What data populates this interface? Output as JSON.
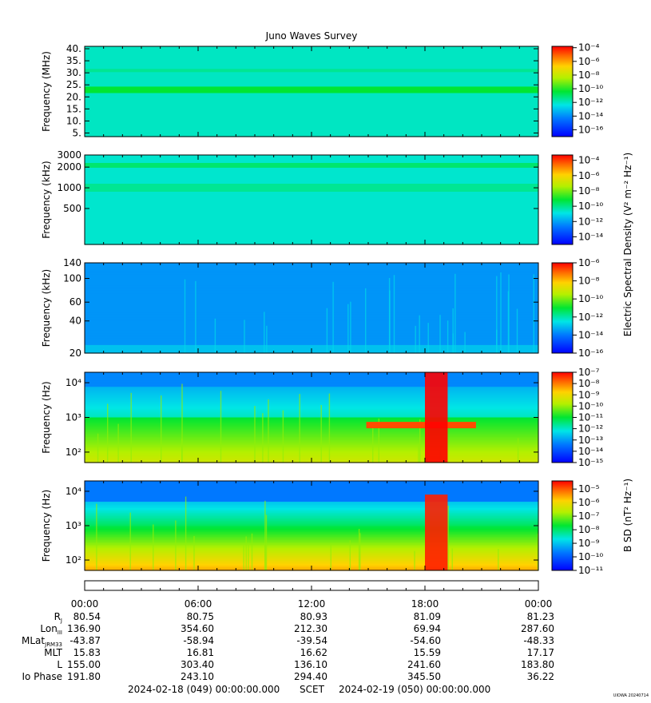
{
  "chart_data": {
    "type": "heatmap",
    "title": "Juno Waves Survey",
    "shared_axis_labels": {
      "electric": "Electric Spectral Density (V² m⁻² Hz⁻¹)",
      "magnetic": "B SD (nT² Hz⁻¹)"
    },
    "panels": [
      {
        "ylabel": "Frequency (MHz)",
        "scale": "linear",
        "ylim": [
          3.5,
          41
        ],
        "yticks": [
          "40.",
          "35.",
          "30.",
          "25.",
          "20.",
          "15.",
          "10.",
          "5."
        ],
        "ytick_values": [
          40,
          35,
          30,
          25,
          20,
          15,
          10,
          5
        ],
        "colorbar_labels": [
          "10⁻⁴",
          "10⁻⁶",
          "10⁻⁸",
          "10⁻¹⁰",
          "10⁻¹²",
          "10⁻¹⁴",
          "10⁻¹⁶"
        ],
        "colorbar_exponents": [
          -4,
          -6,
          -8,
          -10,
          -12,
          -14,
          -16
        ],
        "colorbar_range": [
          -17,
          -3.8
        ]
      },
      {
        "ylabel": "Frequency (kHz)",
        "scale": "log",
        "ylim": [
          150,
          3000
        ],
        "yticks": [
          "3000",
          "2000",
          "1000",
          "500"
        ],
        "ytick_values": [
          3000,
          2000,
          1000,
          500
        ],
        "colorbar_labels": [
          "10⁻⁴",
          "10⁻⁶",
          "10⁻⁸",
          "10⁻¹⁰",
          "10⁻¹²",
          "10⁻¹⁴"
        ],
        "colorbar_exponents": [
          -4,
          -6,
          -8,
          -10,
          -12,
          -14
        ],
        "colorbar_range": [
          -15,
          -3.3
        ]
      },
      {
        "ylabel": "Frequency (kHz)",
        "scale": "log",
        "ylim": [
          20,
          140
        ],
        "yticks": [
          "140",
          "100",
          "60",
          "40",
          "20"
        ],
        "ytick_values": [
          140,
          100,
          60,
          40,
          20
        ],
        "colorbar_labels": [
          "10⁻⁶",
          "10⁻⁸",
          "10⁻¹⁰",
          "10⁻¹²",
          "10⁻¹⁴",
          "10⁻¹⁶"
        ],
        "colorbar_exponents": [
          -6,
          -8,
          -10,
          -12,
          -14,
          -16
        ],
        "colorbar_range": [
          -16,
          -6
        ]
      },
      {
        "ylabel": "Frequency (Hz)",
        "scale": "log",
        "ylim": [
          50,
          20000
        ],
        "yticks": [
          "10⁴",
          "10³",
          "10²"
        ],
        "ytick_values": [
          10000,
          1000,
          100
        ],
        "colorbar_labels": [
          "10⁻⁷",
          "10⁻⁸",
          "10⁻⁹",
          "10⁻¹⁰",
          "10⁻¹¹",
          "10⁻¹²",
          "10⁻¹³",
          "10⁻¹⁴",
          "10⁻¹⁵"
        ],
        "colorbar_exponents": [
          -7,
          -8,
          -9,
          -10,
          -11,
          -12,
          -13,
          -14,
          -15
        ],
        "colorbar_range": [
          -15,
          -7
        ]
      },
      {
        "ylabel": "Frequency (Hz)",
        "scale": "log",
        "ylim": [
          50,
          20000
        ],
        "yticks": [
          "10⁴",
          "10³",
          "10²"
        ],
        "ytick_values": [
          10000,
          1000,
          100
        ],
        "colorbar_labels": [
          "10⁻⁵",
          "10⁻⁶",
          "10⁻⁷",
          "10⁻⁸",
          "10⁻⁹",
          "10⁻¹⁰",
          "10⁻¹¹"
        ],
        "colorbar_exponents": [
          -5,
          -6,
          -7,
          -8,
          -9,
          -10,
          -11
        ],
        "colorbar_range": [
          -11,
          -4.4
        ]
      }
    ],
    "x_ticks": [
      "00:00",
      "06:00",
      "12:00",
      "18:00",
      "00:00"
    ],
    "ephemeris": [
      {
        "label": "R",
        "sub": "J",
        "values": [
          "80.54",
          "80.75",
          "80.93",
          "81.09",
          "81.23"
        ]
      },
      {
        "label": "Lon",
        "sub": "III",
        "values": [
          "136.90",
          "354.60",
          "212.30",
          "69.94",
          "287.60"
        ]
      },
      {
        "label": "MLat",
        "sub": "JRM33",
        "values": [
          "-43.87",
          "-58.94",
          "-39.54",
          "-54.60",
          "-48.33"
        ]
      },
      {
        "label": "MLT",
        "sub": "",
        "values": [
          "15.83",
          "16.81",
          "16.62",
          "15.59",
          "17.17"
        ]
      },
      {
        "label": "L",
        "sub": "",
        "values": [
          "155.00",
          "303.40",
          "136.10",
          "241.60",
          "183.80"
        ]
      },
      {
        "label": "Io Phase",
        "sub": "",
        "values": [
          "191.80",
          "243.10",
          "294.40",
          "345.50",
          "36.22"
        ]
      }
    ],
    "footer": {
      "start": "2024-02-18 (049) 00:00:00.000",
      "mid": "SCET",
      "end": "2024-02-19 (050) 00:00:00.000"
    },
    "watermark": "UIOWA 20240714",
    "features": [
      {
        "panel": 3,
        "label": "narrowband emission ~600 Hz",
        "t0": 14.9,
        "t1": 20.7,
        "f": 600,
        "level": -7.6
      },
      {
        "panel": 3,
        "label": "broadband burst",
        "t0": 18.0,
        "t1": 19.2,
        "level": -7
      },
      {
        "panel": 4,
        "label": "broadband burst",
        "t0": 18.0,
        "t1": 19.2,
        "level": -4.6
      }
    ]
  }
}
